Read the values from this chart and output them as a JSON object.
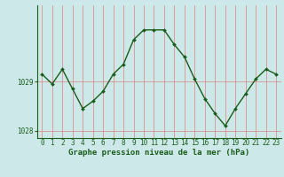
{
  "hours": [
    0,
    1,
    2,
    3,
    4,
    5,
    6,
    7,
    8,
    9,
    10,
    11,
    12,
    13,
    14,
    15,
    16,
    17,
    18,
    19,
    20,
    21,
    22,
    23
  ],
  "pressure": [
    1029.15,
    1028.95,
    1029.25,
    1028.85,
    1028.45,
    1028.6,
    1028.8,
    1029.15,
    1029.35,
    1029.85,
    1030.05,
    1030.05,
    1030.05,
    1029.75,
    1029.5,
    1029.05,
    1028.65,
    1028.35,
    1028.1,
    1028.45,
    1028.75,
    1029.05,
    1029.25,
    1029.15
  ],
  "ylim_min": 1027.85,
  "ylim_max": 1030.55,
  "yticks": [
    1028,
    1029
  ],
  "xticks": [
    0,
    1,
    2,
    3,
    4,
    5,
    6,
    7,
    8,
    9,
    10,
    11,
    12,
    13,
    14,
    15,
    16,
    17,
    18,
    19,
    20,
    21,
    22,
    23
  ],
  "line_color": "#1a5c1a",
  "marker": "D",
  "marker_size": 2.0,
  "bg_color": "#cce8e8",
  "vgrid_color": "#e08080",
  "hgrid_color": "#e08080",
  "xlabel": "Graphe pression niveau de la mer (hPa)",
  "xlabel_color": "#1a5c1a",
  "xlabel_fontsize": 6.5,
  "tick_color": "#1a5c1a",
  "tick_fontsize": 5.5,
  "ytick_fontsize": 5.5,
  "line_width": 1.0,
  "spine_color": "#1a5c1a"
}
